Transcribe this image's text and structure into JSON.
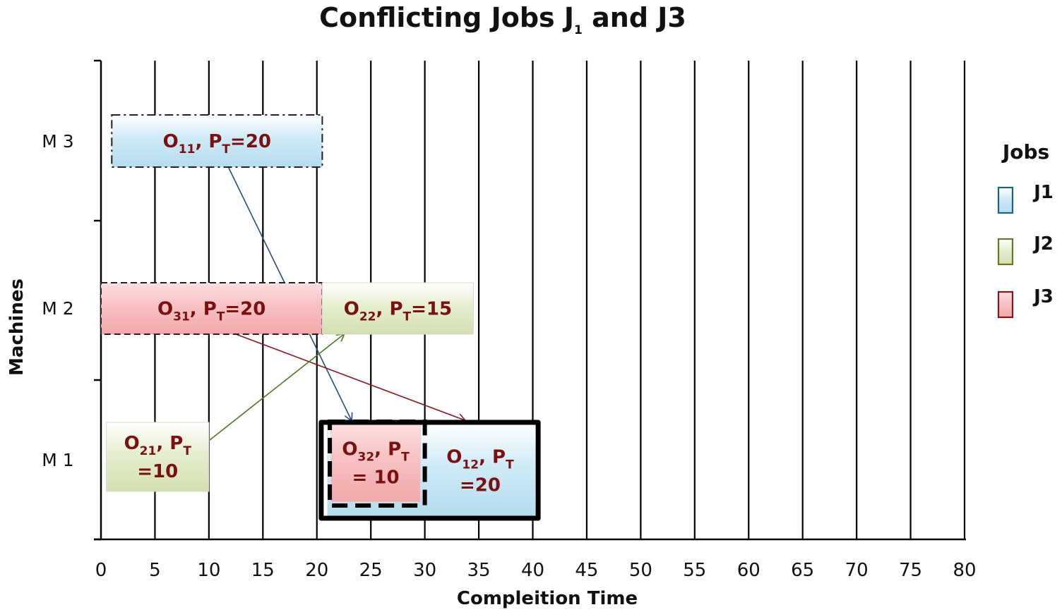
{
  "chart_data": {
    "type": "gantt",
    "title": "Conflicting  Jobs  J",
    "title_sub": "1",
    "title_tail": " and J3",
    "xlabel": "Compleition Time",
    "ylabel": "Machines",
    "xlim": [
      0,
      80
    ],
    "xticks": [
      "0",
      "5",
      "10",
      "15",
      "20",
      "25",
      "30",
      "35",
      "40",
      "45",
      "50",
      "55",
      "60",
      "65",
      "70",
      "75",
      "80"
    ],
    "machines": [
      "M 1",
      "M 2",
      "M 3"
    ],
    "legend_title": "Jobs",
    "jobs": [
      {
        "name": "J1",
        "fill": "#bfe3f2",
        "stroke": "#1f5f86"
      },
      {
        "name": "J2",
        "fill": "#dde8c2",
        "stroke": "#5f7a26"
      },
      {
        "name": "J3",
        "fill": "#f4b9bb",
        "stroke": "#7a1a20"
      }
    ],
    "operations": [
      {
        "id": "O11",
        "job": "J1",
        "machine": "M 3",
        "start": 1,
        "end": 20.5,
        "lines": [
          [
            "O",
            "11",
            ", P",
            "T",
            "=20"
          ]
        ],
        "border": "dashdot"
      },
      {
        "id": "O31",
        "job": "J3",
        "machine": "M 2",
        "start": 0,
        "end": 20.5,
        "lines": [
          [
            "O",
            "31",
            ", P",
            "T",
            "=20"
          ]
        ],
        "border": "dashed"
      },
      {
        "id": "O22",
        "job": "J2",
        "machine": "M 2",
        "start": 20.5,
        "end": 34.5,
        "lines": [
          [
            "O",
            "22",
            ", P",
            "T",
            "=15"
          ]
        ],
        "border": "none"
      },
      {
        "id": "O21",
        "job": "J2",
        "machine": "M 1",
        "start": 0.5,
        "end": 10,
        "lines": [
          [
            "O",
            "21",
            ", P",
            "T",
            ""
          ],
          [
            "=10"
          ]
        ],
        "border": "none"
      },
      {
        "id": "O12",
        "job": "J1",
        "machine": "M 1",
        "start": 21,
        "end": 40.5,
        "lines": [
          [
            "O",
            "12",
            ", P",
            "T",
            ""
          ],
          [
            "=20"
          ]
        ],
        "border": "none",
        "textStart": 30.8
      },
      {
        "id": "O32",
        "job": "J3",
        "machine": "M 1",
        "start": 21,
        "end": 30,
        "lines": [
          [
            "O",
            "32",
            ", P",
            "T",
            ""
          ],
          [
            "= 10"
          ]
        ],
        "border": "none"
      }
    ],
    "conflict_box": {
      "start": 20.4,
      "end": 40.5
    },
    "inner_dashed_box": {
      "start": 21.2,
      "end": 30
    },
    "precedence_arrows": [
      {
        "job": "J1",
        "from": [
          11.8,
          "M 3",
          "bottom"
        ],
        "to": [
          23.2,
          "M 1",
          "top"
        ]
      },
      {
        "job": "J3",
        "from": [
          12.5,
          "M 2",
          "bottom"
        ],
        "to": [
          33.7,
          "M 1",
          "top"
        ]
      },
      {
        "job": "J2",
        "from": [
          10,
          "M 1",
          "mid"
        ],
        "to": [
          22.5,
          "M 2",
          "bottom"
        ]
      }
    ]
  }
}
